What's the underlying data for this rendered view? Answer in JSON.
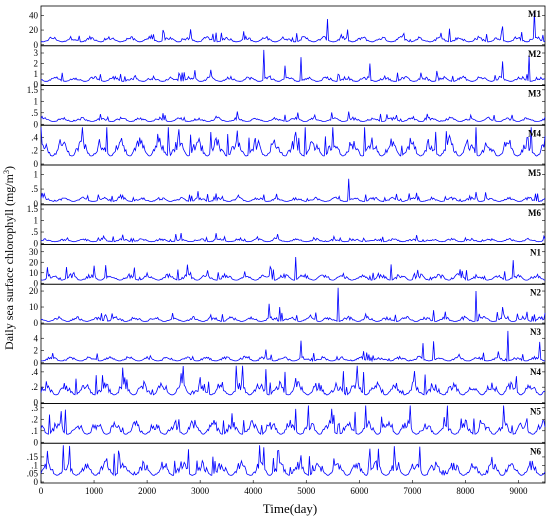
{
  "chart_data": {
    "type": "line",
    "xlabel": "Time(day)",
    "ylabel": "Daily sea surface chlorophyll (mg/m",
    "ylabel_sup": "3",
    "ylabel_close": ")",
    "xlim": [
      0,
      9500
    ],
    "xticks": [
      0,
      1000,
      2000,
      3000,
      4000,
      5000,
      6000,
      7000,
      8000,
      9000
    ],
    "line_color": "#0000ff",
    "panels": [
      {
        "name": "M1",
        "ylim": [
          0,
          50
        ],
        "yticks": [
          0,
          20,
          40
        ],
        "base": 4,
        "amp": 6,
        "spikes": [
          [
            4150,
            30
          ],
          [
            5400,
            35
          ],
          [
            8700,
            25
          ],
          [
            9300,
            45
          ],
          [
            2300,
            20
          ],
          [
            7700,
            22
          ]
        ]
      },
      {
        "name": "M2",
        "ylim": [
          0,
          3.5
        ],
        "yticks": [
          0,
          1,
          2,
          3
        ],
        "base": 0.3,
        "amp": 0.4,
        "spikes": [
          [
            4200,
            3.3
          ],
          [
            4600,
            1.8
          ],
          [
            4900,
            2.6
          ],
          [
            6200,
            2.0
          ],
          [
            8700,
            2.2
          ],
          [
            9200,
            2.8
          ],
          [
            3200,
            1.4
          ],
          [
            1500,
            1.0
          ]
        ]
      },
      {
        "name": "M3",
        "ylim": [
          0,
          1.6
        ],
        "yticks": [
          0,
          0.5,
          1,
          1.5
        ],
        "base": 0.12,
        "amp": 0.15,
        "spikes": [
          [
            2270,
            1.45
          ],
          [
            5800,
            0.55
          ],
          [
            8100,
            0.4
          ],
          [
            3300,
            0.35
          ],
          [
            6700,
            0.4
          ]
        ]
      },
      {
        "name": "M4",
        "ylim": [
          0,
          0.55
        ],
        "yticks": [
          0,
          0.2,
          0.4
        ],
        "base": 0.12,
        "amp": 0.22,
        "spikes": [
          [
            2600,
            0.52
          ],
          [
            3700,
            0.5
          ],
          [
            4800,
            0.48
          ],
          [
            2200,
            0.45
          ]
        ]
      },
      {
        "name": "M5",
        "ylim": [
          0,
          1.25
        ],
        "yticks": [
          0,
          0.5,
          1
        ],
        "base": 0.08,
        "amp": 0.12,
        "spikes": [
          [
            4350,
            1.05
          ],
          [
            5800,
            0.85
          ],
          [
            3300,
            0.35
          ],
          [
            8200,
            0.4
          ],
          [
            1500,
            0.3
          ]
        ]
      },
      {
        "name": "M6",
        "ylim": [
          0,
          1.6
        ],
        "yticks": [
          0,
          0.5,
          1,
          1.5
        ],
        "base": 0.08,
        "amp": 0.12,
        "spikes": [
          [
            1450,
            1.5
          ],
          [
            3300,
            0.45
          ],
          [
            2850,
            0.35
          ],
          [
            4400,
            0.25
          ],
          [
            8000,
            0.25
          ]
        ]
      },
      {
        "name": "N1",
        "ylim": [
          0,
          35
        ],
        "yticks": [
          0,
          10,
          20,
          30
        ],
        "base": 3,
        "amp": 5,
        "spikes": [
          [
            4450,
            30
          ],
          [
            4800,
            25
          ],
          [
            9050,
            28
          ],
          [
            6600,
            18
          ],
          [
            8900,
            22
          ]
        ]
      },
      {
        "name": "N2",
        "ylim": [
          0,
          23
        ],
        "yticks": [
          0,
          10,
          20
        ],
        "base": 1,
        "amp": 2.5,
        "spikes": [
          [
            5600,
            22
          ],
          [
            8200,
            20
          ],
          [
            4300,
            12
          ],
          [
            4500,
            10
          ],
          [
            8700,
            10
          ],
          [
            7400,
            8
          ]
        ]
      },
      {
        "name": "N3",
        "ylim": [
          0,
          6
        ],
        "yticks": [
          0,
          2,
          4
        ],
        "base": 0.3,
        "amp": 0.6,
        "spikes": [
          [
            5950,
            5.0
          ],
          [
            8800,
            5.2
          ],
          [
            4900,
            3.6
          ],
          [
            2650,
            3.0
          ],
          [
            1650,
            3.6
          ],
          [
            7200,
            3.2
          ],
          [
            7400,
            3.5
          ],
          [
            9400,
            3.4
          ],
          [
            850,
            2.8
          ]
        ]
      },
      {
        "name": "N4",
        "ylim": [
          0,
          0.48
        ],
        "yticks": [
          0,
          0.2,
          0.4
        ],
        "base": 0.1,
        "amp": 0.14,
        "spikes": [
          [
            9450,
            0.45
          ],
          [
            2150,
            0.32
          ],
          [
            4800,
            0.32
          ],
          [
            7050,
            0.32
          ]
        ]
      },
      {
        "name": "N5",
        "ylim": [
          0,
          0.32
        ],
        "yticks": [
          0,
          0.1,
          0.2,
          0.3
        ],
        "base": 0.07,
        "amp": 0.1,
        "spikes": [
          [
            4800,
            0.29
          ],
          [
            7600,
            0.22
          ],
          [
            2600,
            0.2
          ]
        ]
      },
      {
        "name": "N6",
        "ylim": [
          0,
          0.22
        ],
        "yticks": [
          0,
          0.05,
          0.1,
          0.15
        ],
        "base": 0.04,
        "amp": 0.07,
        "spikes": [
          [
            6200,
            0.2
          ],
          [
            8500,
            0.15
          ],
          [
            4900,
            0.16
          ]
        ]
      }
    ]
  }
}
